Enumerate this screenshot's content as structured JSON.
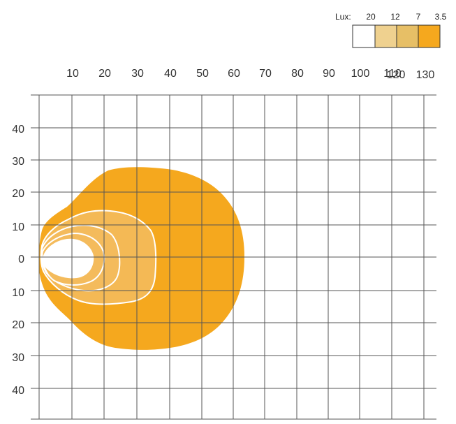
{
  "chart_data": {
    "type": "heatmap",
    "title": "",
    "xlabel": "",
    "ylabel": "",
    "x_ticks": [
      "10",
      "20",
      "30",
      "40",
      "50",
      "60",
      "70",
      "80",
      "90",
      "100",
      "110",
      "120",
      "130"
    ],
    "y_ticks": [
      "40",
      "30",
      "20",
      "10",
      "0",
      "10",
      "20",
      "30",
      "40"
    ],
    "grid": true,
    "legend": {
      "label": "Lux:",
      "placement": "top-right",
      "entries": [
        {
          "value": "20",
          "color": "#ffffff"
        },
        {
          "value": "12",
          "color": "#efd18f"
        },
        {
          "value": "7",
          "color": "#e7bf66"
        },
        {
          "value": "3.5",
          "color": "#f5a81e"
        }
      ]
    },
    "series": [
      {
        "lux": "3.5",
        "color": "#f5a81e",
        "extent": {
          "x_min": 0,
          "x_max": 63,
          "y_min": -28,
          "y_max": 28
        }
      },
      {
        "lux": "7",
        "color": "#f4b955",
        "extent": {
          "x_min": 0,
          "x_max": 37,
          "y_min": -15,
          "y_max": 14
        }
      },
      {
        "lux": "12",
        "color": "#f4bb5c",
        "extent": {
          "x_min": 0,
          "x_max": 22,
          "y_min": -9,
          "y_max": 10
        }
      },
      {
        "lux": "20",
        "color": "#ffffff",
        "extent": {
          "x_min": 0,
          "x_max": 16,
          "y_min": -6,
          "y_max": 6
        }
      }
    ]
  }
}
